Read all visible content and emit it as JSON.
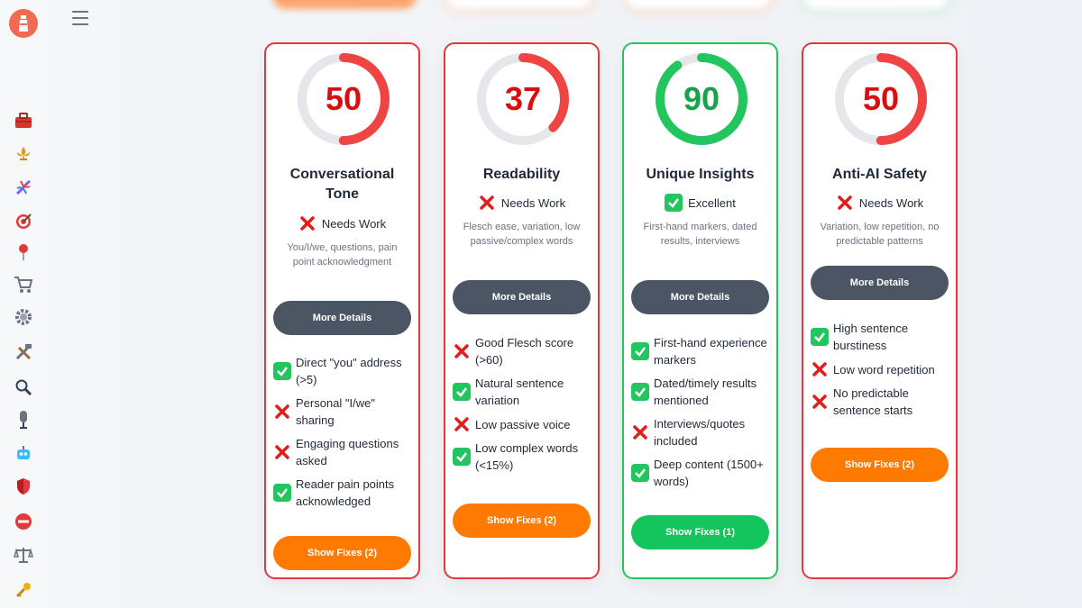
{
  "cards": [
    {
      "score": "50",
      "score_fraction": 0.5,
      "title": "Conversational Tone",
      "status": "Needs Work",
      "status_type": "bad",
      "description": "You/I/we, questions, pain point acknowledgment",
      "details_label": "More Details",
      "checks": [
        {
          "ok": true,
          "text": "Direct \"you\" address (>5)"
        },
        {
          "ok": false,
          "text": "Personal \"I/we\" sharing"
        },
        {
          "ok": false,
          "text": "Engaging questions asked"
        },
        {
          "ok": true,
          "text": "Reader pain points acknowledged"
        }
      ],
      "fixes_label": "Show Fixes (2)"
    },
    {
      "score": "37",
      "score_fraction": 0.37,
      "title": "Readability",
      "status": "Needs Work",
      "status_type": "bad",
      "description": "Flesch ease, variation, low passive/complex words",
      "details_label": "More Details",
      "checks": [
        {
          "ok": false,
          "text": "Good Flesch score (>60)"
        },
        {
          "ok": true,
          "text": "Natural sentence variation"
        },
        {
          "ok": false,
          "text": "Low passive voice"
        },
        {
          "ok": true,
          "text": "Low complex words (<15%)"
        }
      ],
      "fixes_label": "Show Fixes (2)"
    },
    {
      "score": "90",
      "score_fraction": 0.9,
      "title": "Unique Insights",
      "status": "Excellent",
      "status_type": "good",
      "description": "First-hand markers, dated results, interviews",
      "details_label": "More Details",
      "checks": [
        {
          "ok": true,
          "text": "First-hand experience markers"
        },
        {
          "ok": true,
          "text": "Dated/timely results mentioned"
        },
        {
          "ok": false,
          "text": "Interviews/quotes included"
        },
        {
          "ok": true,
          "text": "Deep content (1500+ words)"
        }
      ],
      "fixes_label": "Show Fixes (1)"
    },
    {
      "score": "50",
      "score_fraction": 0.5,
      "title": "Anti-AI Safety",
      "status": "Needs Work",
      "status_type": "bad",
      "description": "Variation, low repetition, no predictable patterns",
      "details_label": "More Details",
      "checks": [
        {
          "ok": true,
          "text": "High sentence burstiness"
        },
        {
          "ok": false,
          "text": "Low word repetition"
        },
        {
          "ok": false,
          "text": "No predictable sentence starts"
        }
      ],
      "fixes_label": "Show Fixes (2)"
    }
  ],
  "sidebar": {
    "icons": [
      "toolbox-icon",
      "fleur-de-lis-icon",
      "dna-icon",
      "target-icon",
      "pin-icon",
      "cart-icon",
      "gear-icon",
      "tools-icon",
      "search-icon",
      "microphone-icon",
      "robot-icon",
      "shield-icon",
      "no-entry-icon",
      "scales-icon",
      "key-icon"
    ]
  },
  "colors": {
    "bad": "#e5383b",
    "good": "#22c55e",
    "accent_orange": "#ff7a00",
    "button_dark": "#4b5563"
  }
}
